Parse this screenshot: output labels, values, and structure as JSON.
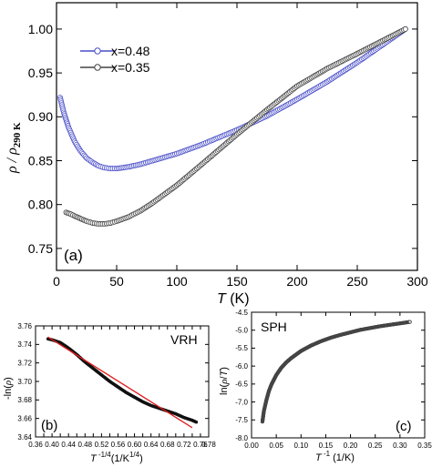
{
  "chart_data": [
    {
      "type": "scatter",
      "panel_label": "(a)",
      "xlabel": "T (K)",
      "ylabel": "ρ / ρ290 K",
      "xlim": [
        0,
        300
      ],
      "ylim": [
        0.725,
        1.03
      ],
      "xticks": [
        0,
        50,
        100,
        150,
        200,
        250,
        300
      ],
      "xtick_labels": [
        "0",
        "50",
        "100",
        "150",
        "200",
        "250",
        "300"
      ],
      "yticks": [
        0.75,
        0.8,
        0.85,
        0.9,
        0.95,
        1.0
      ],
      "ytick_labels": [
        "0.75",
        "0.80",
        "0.85",
        "0.90",
        "0.95",
        "1.00"
      ],
      "legend_position": "top-left",
      "series": [
        {
          "name": "x=0.48",
          "color": "#4a4fc8",
          "x": [
            3,
            6,
            10,
            15,
            20,
            25,
            30,
            35,
            40,
            45,
            50,
            60,
            70,
            80,
            100,
            120,
            150,
            175,
            200,
            225,
            250,
            270,
            290
          ],
          "y": [
            0.922,
            0.905,
            0.888,
            0.872,
            0.861,
            0.853,
            0.848,
            0.844,
            0.842,
            0.841,
            0.841,
            0.843,
            0.846,
            0.85,
            0.858,
            0.868,
            0.885,
            0.901,
            0.92,
            0.94,
            0.962,
            0.981,
            1.0
          ]
        },
        {
          "name": "x=0.35",
          "color": "#444444",
          "x": [
            8,
            12,
            15,
            20,
            25,
            30,
            35,
            40,
            45,
            50,
            60,
            70,
            80,
            100,
            120,
            150,
            175,
            200,
            225,
            250,
            270,
            290
          ],
          "y": [
            0.791,
            0.789,
            0.787,
            0.784,
            0.781,
            0.779,
            0.778,
            0.778,
            0.779,
            0.781,
            0.786,
            0.793,
            0.802,
            0.822,
            0.845,
            0.88,
            0.908,
            0.935,
            0.955,
            0.972,
            0.986,
            1.0
          ]
        }
      ]
    },
    {
      "type": "scatter",
      "panel_label": "(b)",
      "annotation": "VRH",
      "xlabel": "T^-1/4 (1/K^1/4)",
      "ylabel": "-ln(ρ)",
      "xlim": [
        0.36,
        0.78
      ],
      "ylim": [
        3.64,
        3.76
      ],
      "xticks": [
        0.36,
        0.38,
        0.4,
        0.42,
        0.44,
        0.46,
        0.48,
        0.5,
        0.52,
        0.54,
        0.56,
        0.58,
        0.6,
        0.62,
        0.64,
        0.66,
        0.68,
        0.7,
        0.72,
        0.74,
        0.76,
        0.78
      ],
      "xtick_labels": [
        "0.36",
        "",
        "0.40",
        "",
        "0.44",
        "",
        "0.48",
        "",
        "0.52",
        "",
        "0.56",
        "",
        "0.60",
        "",
        "0.64",
        "",
        "0.68",
        "",
        "0.72",
        "",
        "0.76",
        "0.78"
      ],
      "yticks": [
        3.64,
        3.66,
        3.68,
        3.7,
        3.72,
        3.74,
        3.76
      ],
      "ytick_labels": [
        "3.64",
        "3.66",
        "3.68",
        "3.70",
        "3.72",
        "3.74",
        "3.76"
      ],
      "series": [
        {
          "name": "",
          "color": "#111111",
          "x": [
            0.39,
            0.4,
            0.42,
            0.44,
            0.46,
            0.48,
            0.5,
            0.52,
            0.54,
            0.56,
            0.58,
            0.6,
            0.62,
            0.64,
            0.66,
            0.68,
            0.7,
            0.72,
            0.74,
            0.75
          ],
          "y": [
            3.746,
            3.745,
            3.742,
            3.736,
            3.729,
            3.721,
            3.714,
            3.707,
            3.7,
            3.694,
            3.688,
            3.683,
            3.678,
            3.674,
            3.671,
            3.668,
            3.665,
            3.661,
            3.658,
            3.656
          ]
        }
      ],
      "fit_line": {
        "color": "#e02020",
        "x": [
          0.39,
          0.74
        ],
        "y": [
          3.748,
          3.65
        ]
      }
    },
    {
      "type": "scatter",
      "panel_label": "(c)",
      "annotation": "SPH",
      "xlabel": "T^-1 (1/K)",
      "ylabel": "ln(ρ/T)",
      "xlim": [
        0.0,
        0.35
      ],
      "ylim": [
        -8.0,
        -4.5
      ],
      "xticks": [
        0.0,
        0.05,
        0.1,
        0.15,
        0.2,
        0.25,
        0.3,
        0.35
      ],
      "xtick_labels": [
        "0.00",
        "0.05",
        "0.10",
        "0.15",
        "0.20",
        "0.25",
        "0.30",
        "0.35"
      ],
      "yticks": [
        -8.0,
        -7.5,
        -7.0,
        -6.5,
        -6.0,
        -5.5,
        -5.0,
        -4.5
      ],
      "ytick_labels": [
        "-8.0",
        "-7.5",
        "-7.0",
        "-6.5",
        "-6.0",
        "-5.5",
        "-5.0",
        "-4.5"
      ],
      "series": [
        {
          "name": "",
          "color": "#444444",
          "x": [
            0.022,
            0.025,
            0.03,
            0.035,
            0.04,
            0.05,
            0.06,
            0.07,
            0.08,
            0.1,
            0.12,
            0.14,
            0.16,
            0.18,
            0.2,
            0.22,
            0.24,
            0.26,
            0.28,
            0.3,
            0.32
          ],
          "y": [
            -7.55,
            -7.25,
            -6.95,
            -6.7,
            -6.52,
            -6.25,
            -6.05,
            -5.9,
            -5.78,
            -5.58,
            -5.43,
            -5.31,
            -5.21,
            -5.13,
            -5.06,
            -4.99,
            -4.94,
            -4.89,
            -4.85,
            -4.81,
            -4.77
          ]
        }
      ]
    }
  ]
}
